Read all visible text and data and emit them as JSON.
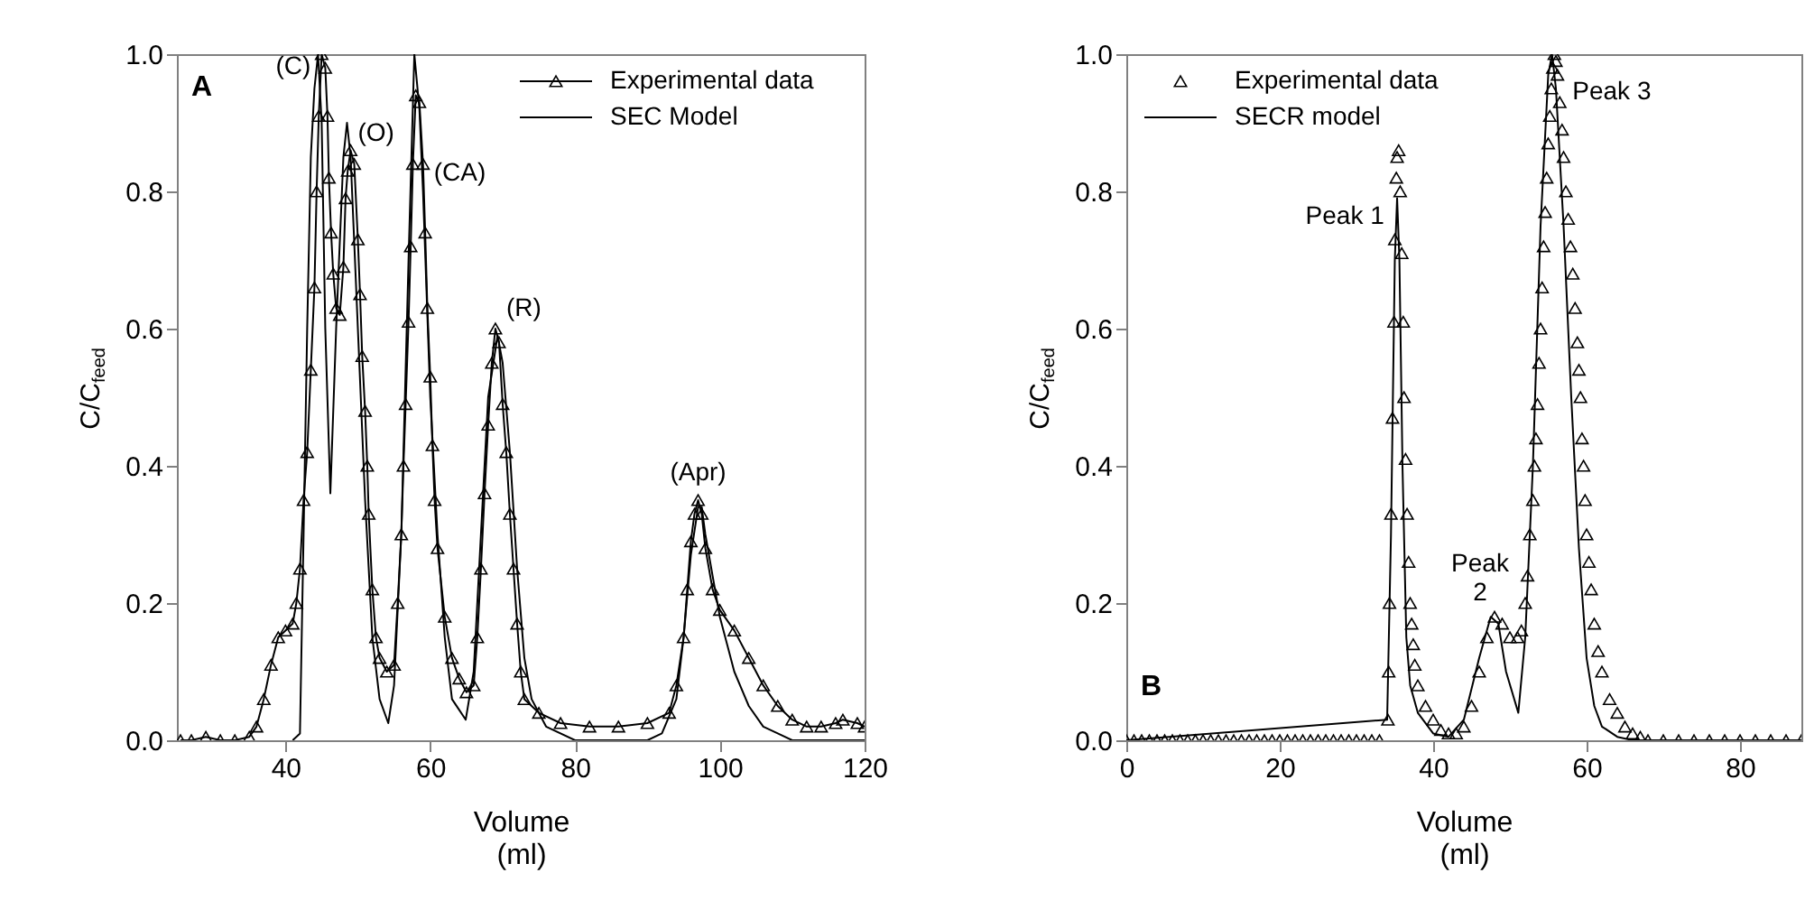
{
  "chart_data": [
    {
      "type": "line",
      "xlabel": "Volume\n(ml)",
      "ylabel": "C/C$_{feed}$",
      "xlim": [
        25,
        120
      ],
      "ylim": [
        0,
        1.0
      ],
      "xticks": [
        40,
        60,
        80,
        100,
        120
      ],
      "yticks": [
        {
          "value": 0,
          "label": "0.0"
        },
        {
          "value": 0.2,
          "label": "0.2"
        },
        {
          "value": 0.4,
          "label": "0.4"
        },
        {
          "value": 0.6,
          "label": "0.6"
        },
        {
          "value": 0.8,
          "label": "0.8"
        },
        {
          "value": 1.0,
          "label": "1.0"
        }
      ],
      "grid": false,
      "legend": "top right",
      "annotations": [
        "A",
        {
          "text": "(C)",
          "x": 44.5,
          "y": 1.0
        },
        {
          "text": "(O)",
          "x": 49,
          "y": 0.86
        },
        {
          "text": "(CA)",
          "x": 59,
          "y": 0.84
        },
        {
          "text": "(R)",
          "x": 69,
          "y": 0.6
        },
        {
          "text": "(Apr)",
          "x": 97,
          "y": 0.35
        }
      ],
      "series": [
        {
          "name": "Experimental data",
          "color": "#000000",
          "type": "line",
          "marker": "triangle",
          "x": [
            25.5,
            27,
            29,
            31,
            33,
            35,
            36,
            37,
            38,
            39,
            40,
            41,
            41.5,
            42,
            42.5,
            43,
            43.5,
            44,
            44.3,
            44.6,
            45,
            45.5,
            45.8,
            46,
            46.3,
            46.6,
            47,
            47.5,
            48,
            48.3,
            48.6,
            49,
            49.5,
            50,
            50.3,
            50.6,
            51,
            51.3,
            51.5,
            52,
            52.5,
            53,
            54,
            55,
            55.5,
            56,
            56.3,
            56.6,
            57,
            57.3,
            57.6,
            58,
            58.5,
            59,
            59.3,
            59.6,
            60,
            60.3,
            60.6,
            61,
            62,
            63,
            64,
            65,
            66,
            66.5,
            67,
            67.5,
            68,
            68.5,
            69,
            69.5,
            70,
            70.5,
            71,
            71.5,
            72,
            72.5,
            73,
            75,
            78,
            82,
            86,
            90,
            93,
            94,
            95,
            95.5,
            96,
            96.5,
            97,
            97.5,
            98,
            99,
            100,
            102,
            104,
            106,
            108,
            110,
            112,
            114,
            116,
            117,
            119,
            120
          ],
          "values": [
            0,
            0,
            0.005,
            0,
            0,
            0.005,
            0.02,
            0.06,
            0.11,
            0.15,
            0.16,
            0.17,
            0.2,
            0.25,
            0.35,
            0.42,
            0.54,
            0.66,
            0.8,
            0.91,
            1.0,
            0.98,
            0.91,
            0.82,
            0.74,
            0.68,
            0.63,
            0.62,
            0.69,
            0.79,
            0.83,
            0.86,
            0.84,
            0.73,
            0.65,
            0.56,
            0.48,
            0.4,
            0.33,
            0.22,
            0.15,
            0.12,
            0.1,
            0.11,
            0.2,
            0.3,
            0.4,
            0.49,
            0.61,
            0.72,
            0.84,
            0.94,
            0.93,
            0.84,
            0.74,
            0.63,
            0.53,
            0.43,
            0.35,
            0.28,
            0.18,
            0.12,
            0.09,
            0.07,
            0.08,
            0.15,
            0.25,
            0.36,
            0.46,
            0.55,
            0.6,
            0.58,
            0.49,
            0.42,
            0.33,
            0.25,
            0.17,
            0.1,
            0.06,
            0.04,
            0.025,
            0.02,
            0.02,
            0.025,
            0.04,
            0.08,
            0.15,
            0.22,
            0.29,
            0.33,
            0.35,
            0.33,
            0.28,
            0.22,
            0.19,
            0.16,
            0.12,
            0.08,
            0.05,
            0.03,
            0.02,
            0.02,
            0.025,
            0.03,
            0.025,
            0.02
          ]
        },
        {
          "name": "SEC Model",
          "color": "#000000",
          "type": "line",
          "marker": "none",
          "x": [
            41,
            42,
            42.5,
            43,
            43.5,
            44,
            44.5,
            45,
            45.5,
            46.2,
            47,
            48,
            48.5,
            49,
            50,
            51,
            52,
            53,
            54.2,
            55,
            56,
            57,
            57.8,
            58.5,
            59,
            60,
            61,
            62,
            63,
            64.9,
            66,
            67,
            68,
            69.3,
            70,
            71,
            72,
            73,
            74,
            76,
            80,
            85,
            90,
            92,
            94,
            95,
            96,
            97,
            97.5,
            98,
            99,
            100,
            101,
            102,
            104,
            106,
            108,
            110,
            115,
            120
          ],
          "values": [
            0,
            0.01,
            0.3,
            0.6,
            0.85,
            0.95,
            1.0,
            0.9,
            0.6,
            0.36,
            0.6,
            0.85,
            0.9,
            0.85,
            0.6,
            0.35,
            0.15,
            0.06,
            0.025,
            0.08,
            0.3,
            0.7,
            1.0,
            0.92,
            0.8,
            0.5,
            0.3,
            0.15,
            0.06,
            0.03,
            0.1,
            0.3,
            0.5,
            0.59,
            0.55,
            0.42,
            0.25,
            0.12,
            0.06,
            0.02,
            0,
            0,
            0,
            0.01,
            0.06,
            0.15,
            0.27,
            0.34,
            0.34,
            0.3,
            0.24,
            0.18,
            0.14,
            0.1,
            0.05,
            0.02,
            0.01,
            0,
            0,
            0
          ]
        }
      ]
    },
    {
      "type": "line",
      "xlabel": "Volume\n(ml)",
      "ylabel": "C/C$_{feed}$",
      "xlim": [
        0,
        88
      ],
      "ylim": [
        0,
        1.0
      ],
      "xticks": [
        0,
        20,
        40,
        60,
        80
      ],
      "yticks": [
        {
          "value": 0,
          "label": "0.0"
        },
        {
          "value": 0.2,
          "label": "0.2"
        },
        {
          "value": 0.4,
          "label": "0.4"
        },
        {
          "value": 0.6,
          "label": "0.6"
        },
        {
          "value": 0.8,
          "label": "0.8"
        },
        {
          "value": 1.0,
          "label": "1.0"
        }
      ],
      "grid": false,
      "legend": "top left",
      "annotations": [
        "B",
        {
          "text": "Peak 1",
          "x": 35.5,
          "y": 0.86
        },
        {
          "text": "Peak\n2",
          "x": 48,
          "y": 0.18
        },
        {
          "text": "Peak 3",
          "x": 55.8,
          "y": 1.0
        }
      ],
      "series": [
        {
          "name": "Experimental data",
          "color": "#000000",
          "type": "scatter",
          "marker": "triangle",
          "x": [
            0,
            1,
            2,
            3,
            4,
            5,
            6,
            7,
            8,
            9,
            10,
            11,
            12,
            13,
            14,
            15,
            16,
            17,
            18,
            19,
            20,
            21,
            22,
            23,
            24,
            25,
            26,
            27,
            28,
            29,
            30,
            31,
            32,
            33,
            34.1,
            34.2,
            34.3,
            34.5,
            34.7,
            34.9,
            35,
            35.2,
            35.3,
            35.5,
            35.7,
            35.9,
            36.1,
            36.2,
            36.4,
            36.6,
            36.8,
            37,
            37.2,
            37.4,
            37.6,
            38,
            39,
            40,
            41,
            42,
            43,
            44,
            45,
            46,
            47,
            48,
            49,
            50,
            51,
            51.5,
            52,
            52.3,
            52.6,
            53,
            53.2,
            53.4,
            53.6,
            53.8,
            54,
            54.2,
            54.4,
            54.6,
            54.8,
            55,
            55.2,
            55.4,
            55.6,
            55.8,
            56,
            56.2,
            56.5,
            56.8,
            57,
            57.3,
            57.6,
            57.9,
            58.2,
            58.5,
            58.8,
            59,
            59.2,
            59.4,
            59.6,
            59.8,
            60,
            60.3,
            60.6,
            61,
            61.5,
            62,
            63,
            64,
            65,
            66,
            67,
            68,
            70,
            72,
            74,
            76,
            78,
            80,
            82,
            84,
            86,
            88
          ],
          "values": [
            0,
            0,
            0,
            0,
            0,
            0,
            0,
            0,
            0,
            0,
            0,
            0,
            0,
            0,
            0,
            0,
            0,
            0,
            0,
            0,
            0,
            0,
            0,
            0,
            0,
            0,
            0,
            0,
            0,
            0,
            0,
            0,
            0,
            0,
            0.03,
            0.1,
            0.2,
            0.33,
            0.47,
            0.61,
            0.73,
            0.82,
            0.85,
            0.86,
            0.8,
            0.71,
            0.61,
            0.5,
            0.41,
            0.33,
            0.26,
            0.2,
            0.17,
            0.14,
            0.11,
            0.08,
            0.05,
            0.03,
            0.015,
            0.01,
            0.01,
            0.02,
            0.05,
            0.1,
            0.15,
            0.18,
            0.17,
            0.15,
            0.15,
            0.16,
            0.2,
            0.24,
            0.3,
            0.35,
            0.4,
            0.44,
            0.49,
            0.55,
            0.6,
            0.66,
            0.72,
            0.77,
            0.82,
            0.87,
            0.91,
            0.95,
            0.98,
            1.0,
            0.99,
            0.97,
            0.93,
            0.89,
            0.85,
            0.8,
            0.76,
            0.72,
            0.68,
            0.63,
            0.58,
            0.54,
            0.5,
            0.44,
            0.4,
            0.35,
            0.3,
            0.26,
            0.22,
            0.17,
            0.13,
            0.1,
            0.06,
            0.04,
            0.02,
            0.01,
            0.005,
            0,
            0,
            0,
            0,
            0,
            0,
            0,
            0,
            0,
            0,
            0
          ]
        },
        {
          "name": "SECR model",
          "color": "#000000",
          "type": "line",
          "marker": "none",
          "x": [
            0,
            34,
            34.5,
            35,
            35.3,
            35.6,
            36,
            36.5,
            37,
            38,
            40,
            42,
            44,
            46,
            47.5,
            48.5,
            49.5,
            51.1,
            52,
            53,
            54,
            55,
            55.5,
            56,
            57,
            58,
            59,
            60,
            61,
            62,
            64,
            66,
            88
          ],
          "values": [
            0,
            0.03,
            0.3,
            0.7,
            0.79,
            0.7,
            0.4,
            0.15,
            0.08,
            0.04,
            0.01,
            0.005,
            0.03,
            0.12,
            0.18,
            0.17,
            0.1,
            0.04,
            0.15,
            0.4,
            0.75,
            0.97,
            1.0,
            0.95,
            0.75,
            0.5,
            0.28,
            0.12,
            0.05,
            0.02,
            0.005,
            0,
            0
          ]
        }
      ]
    }
  ]
}
